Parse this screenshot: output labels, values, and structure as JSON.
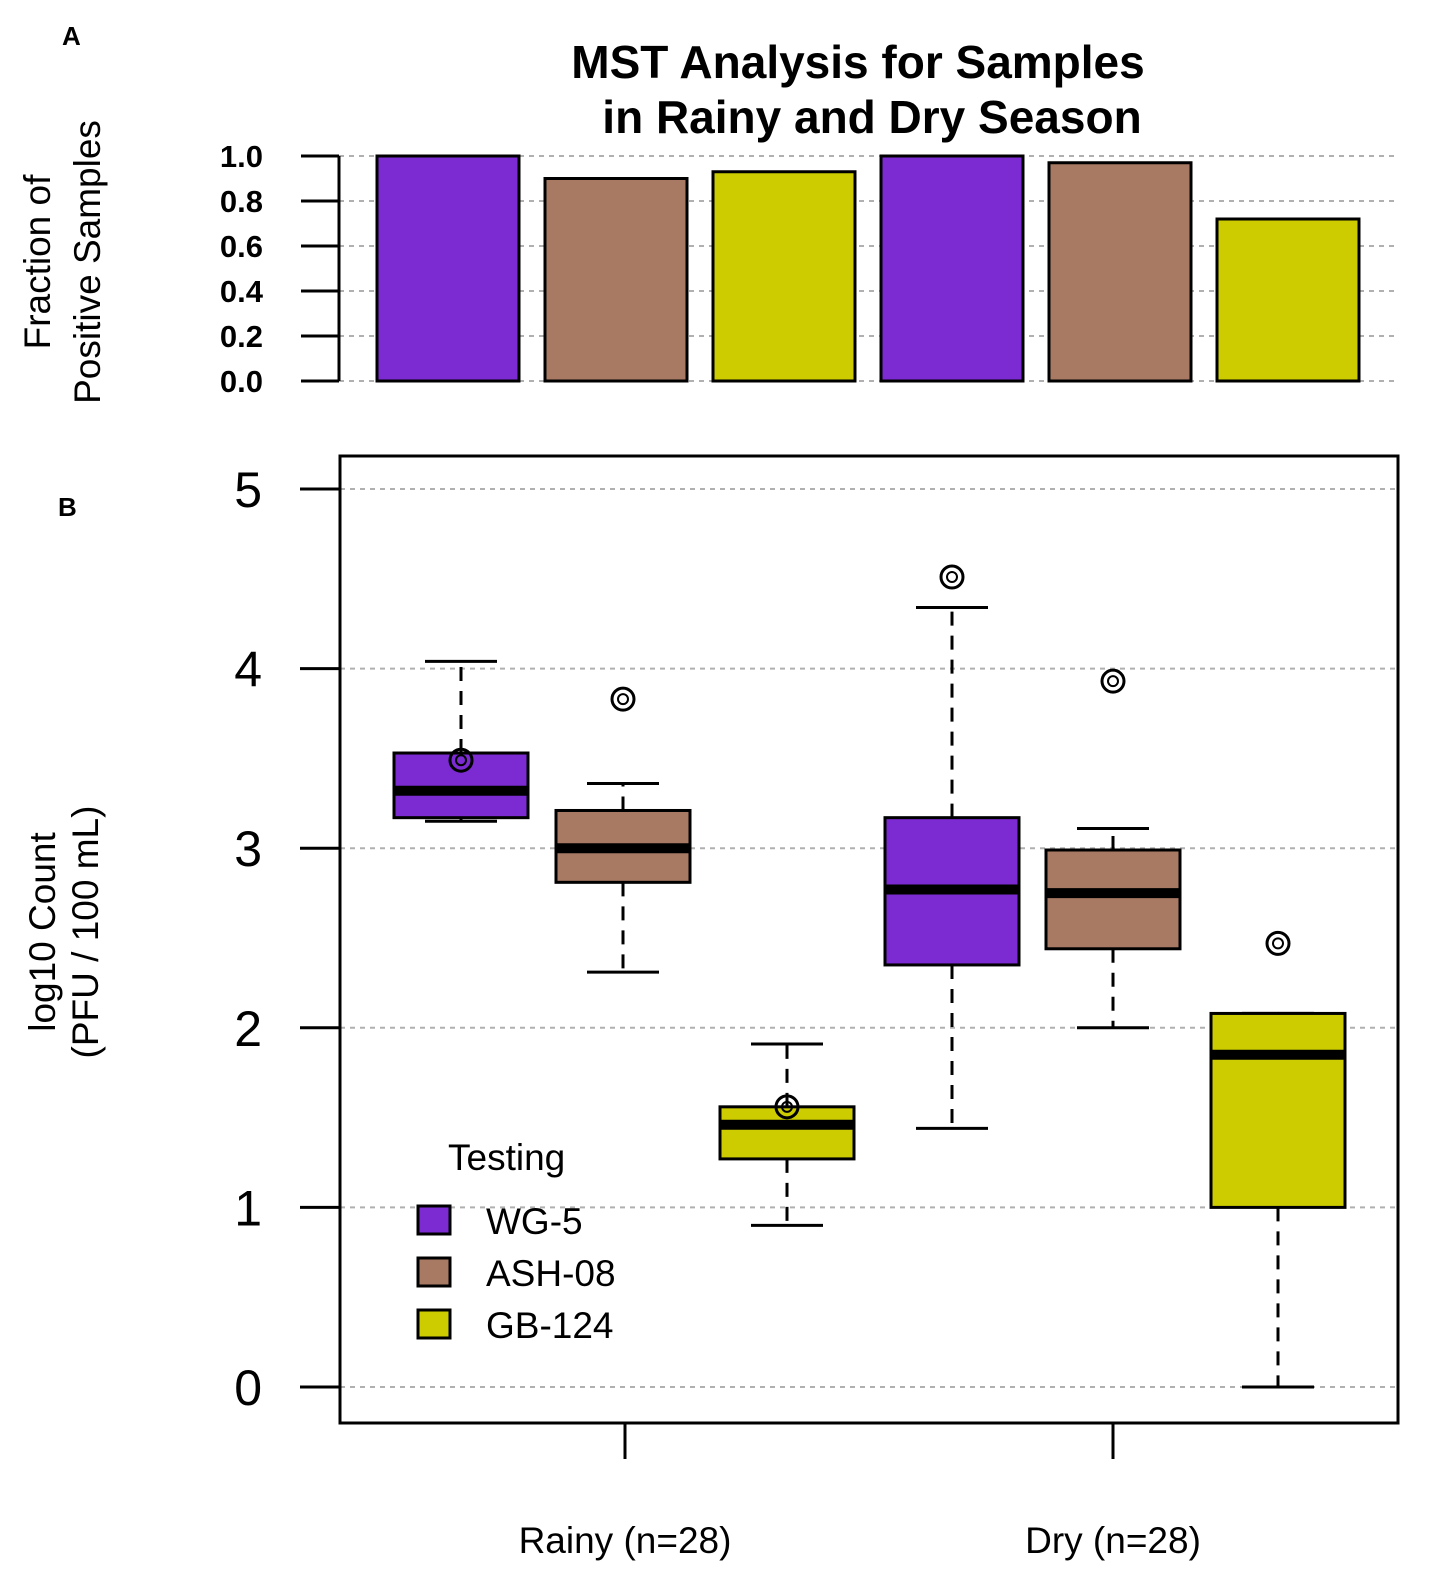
{
  "panel_labels": {
    "a": "A",
    "b": "B"
  },
  "chart_data": [
    {
      "type": "bar",
      "panel": "A",
      "title_lines": [
        "MST Analysis for Samples",
        "in Rainy and Dry Season"
      ],
      "ylabel_lines": [
        "Fraction of",
        "Positive Samples"
      ],
      "ylim": [
        0,
        1
      ],
      "yticks": [
        "0.0",
        "0.2",
        "0.4",
        "0.6",
        "0.8",
        "1.0"
      ],
      "grid": true,
      "categories": [
        "Rainy",
        "Dry"
      ],
      "series": [
        {
          "name": "WG-5",
          "color": "#7b2bd1",
          "values": [
            1.0,
            1.0
          ]
        },
        {
          "name": "ASH-08",
          "color": "#a87a64",
          "values": [
            0.9,
            0.97
          ]
        },
        {
          "name": "GB-124",
          "color": "#cccc00",
          "values": [
            0.93,
            0.72
          ]
        }
      ]
    },
    {
      "type": "box",
      "panel": "B",
      "ylabel_lines": [
        "log10 Count",
        "(PFU / 100 mL)"
      ],
      "ylim": [
        -0.2,
        5.2
      ],
      "yticks": [
        "0",
        "1",
        "2",
        "3",
        "4",
        "5"
      ],
      "grid": true,
      "categories": [
        "Rainy (n=28)",
        "Dry (n=28)"
      ],
      "legend": {
        "title": "Testing",
        "position": "bottom-left",
        "items": [
          {
            "label": "WG-5",
            "color": "#7b2bd1"
          },
          {
            "label": "ASH-08",
            "color": "#a87a64"
          },
          {
            "label": "GB-124",
            "color": "#cccc00"
          }
        ]
      },
      "boxes": [
        {
          "group": "Rainy (n=28)",
          "series": "WG-5",
          "color": "#7b2bd1",
          "whisker_low": 3.15,
          "q1": 3.17,
          "median": 3.32,
          "q3": 3.53,
          "whisker_high": 4.04,
          "outliers": [
            3.49
          ]
        },
        {
          "group": "Rainy (n=28)",
          "series": "ASH-08",
          "color": "#a87a64",
          "whisker_low": 2.31,
          "q1": 2.81,
          "median": 3.0,
          "q3": 3.21,
          "whisker_high": 3.36,
          "outliers": [
            3.83
          ]
        },
        {
          "group": "Rainy (n=28)",
          "series": "GB-124",
          "color": "#cccc00",
          "whisker_low": 0.9,
          "q1": 1.27,
          "median": 1.46,
          "q3": 1.56,
          "whisker_high": 1.91,
          "outliers": [
            1.56
          ]
        },
        {
          "group": "Dry (n=28)",
          "series": "WG-5",
          "color": "#7b2bd1",
          "whisker_low": 1.44,
          "q1": 2.35,
          "median": 2.77,
          "q3": 3.17,
          "whisker_high": 4.34,
          "outliers": [
            4.51
          ]
        },
        {
          "group": "Dry (n=28)",
          "series": "ASH-08",
          "color": "#a87a64",
          "whisker_low": 2.0,
          "q1": 2.44,
          "median": 2.75,
          "q3": 2.99,
          "whisker_high": 3.11,
          "outliers": [
            3.93
          ]
        },
        {
          "group": "Dry (n=28)",
          "series": "GB-124",
          "color": "#cccc00",
          "whisker_low": 0.0,
          "q1": 1.0,
          "median": 1.85,
          "q3": 2.08,
          "whisker_high": 2.08,
          "outliers": [
            2.47
          ]
        }
      ]
    }
  ]
}
